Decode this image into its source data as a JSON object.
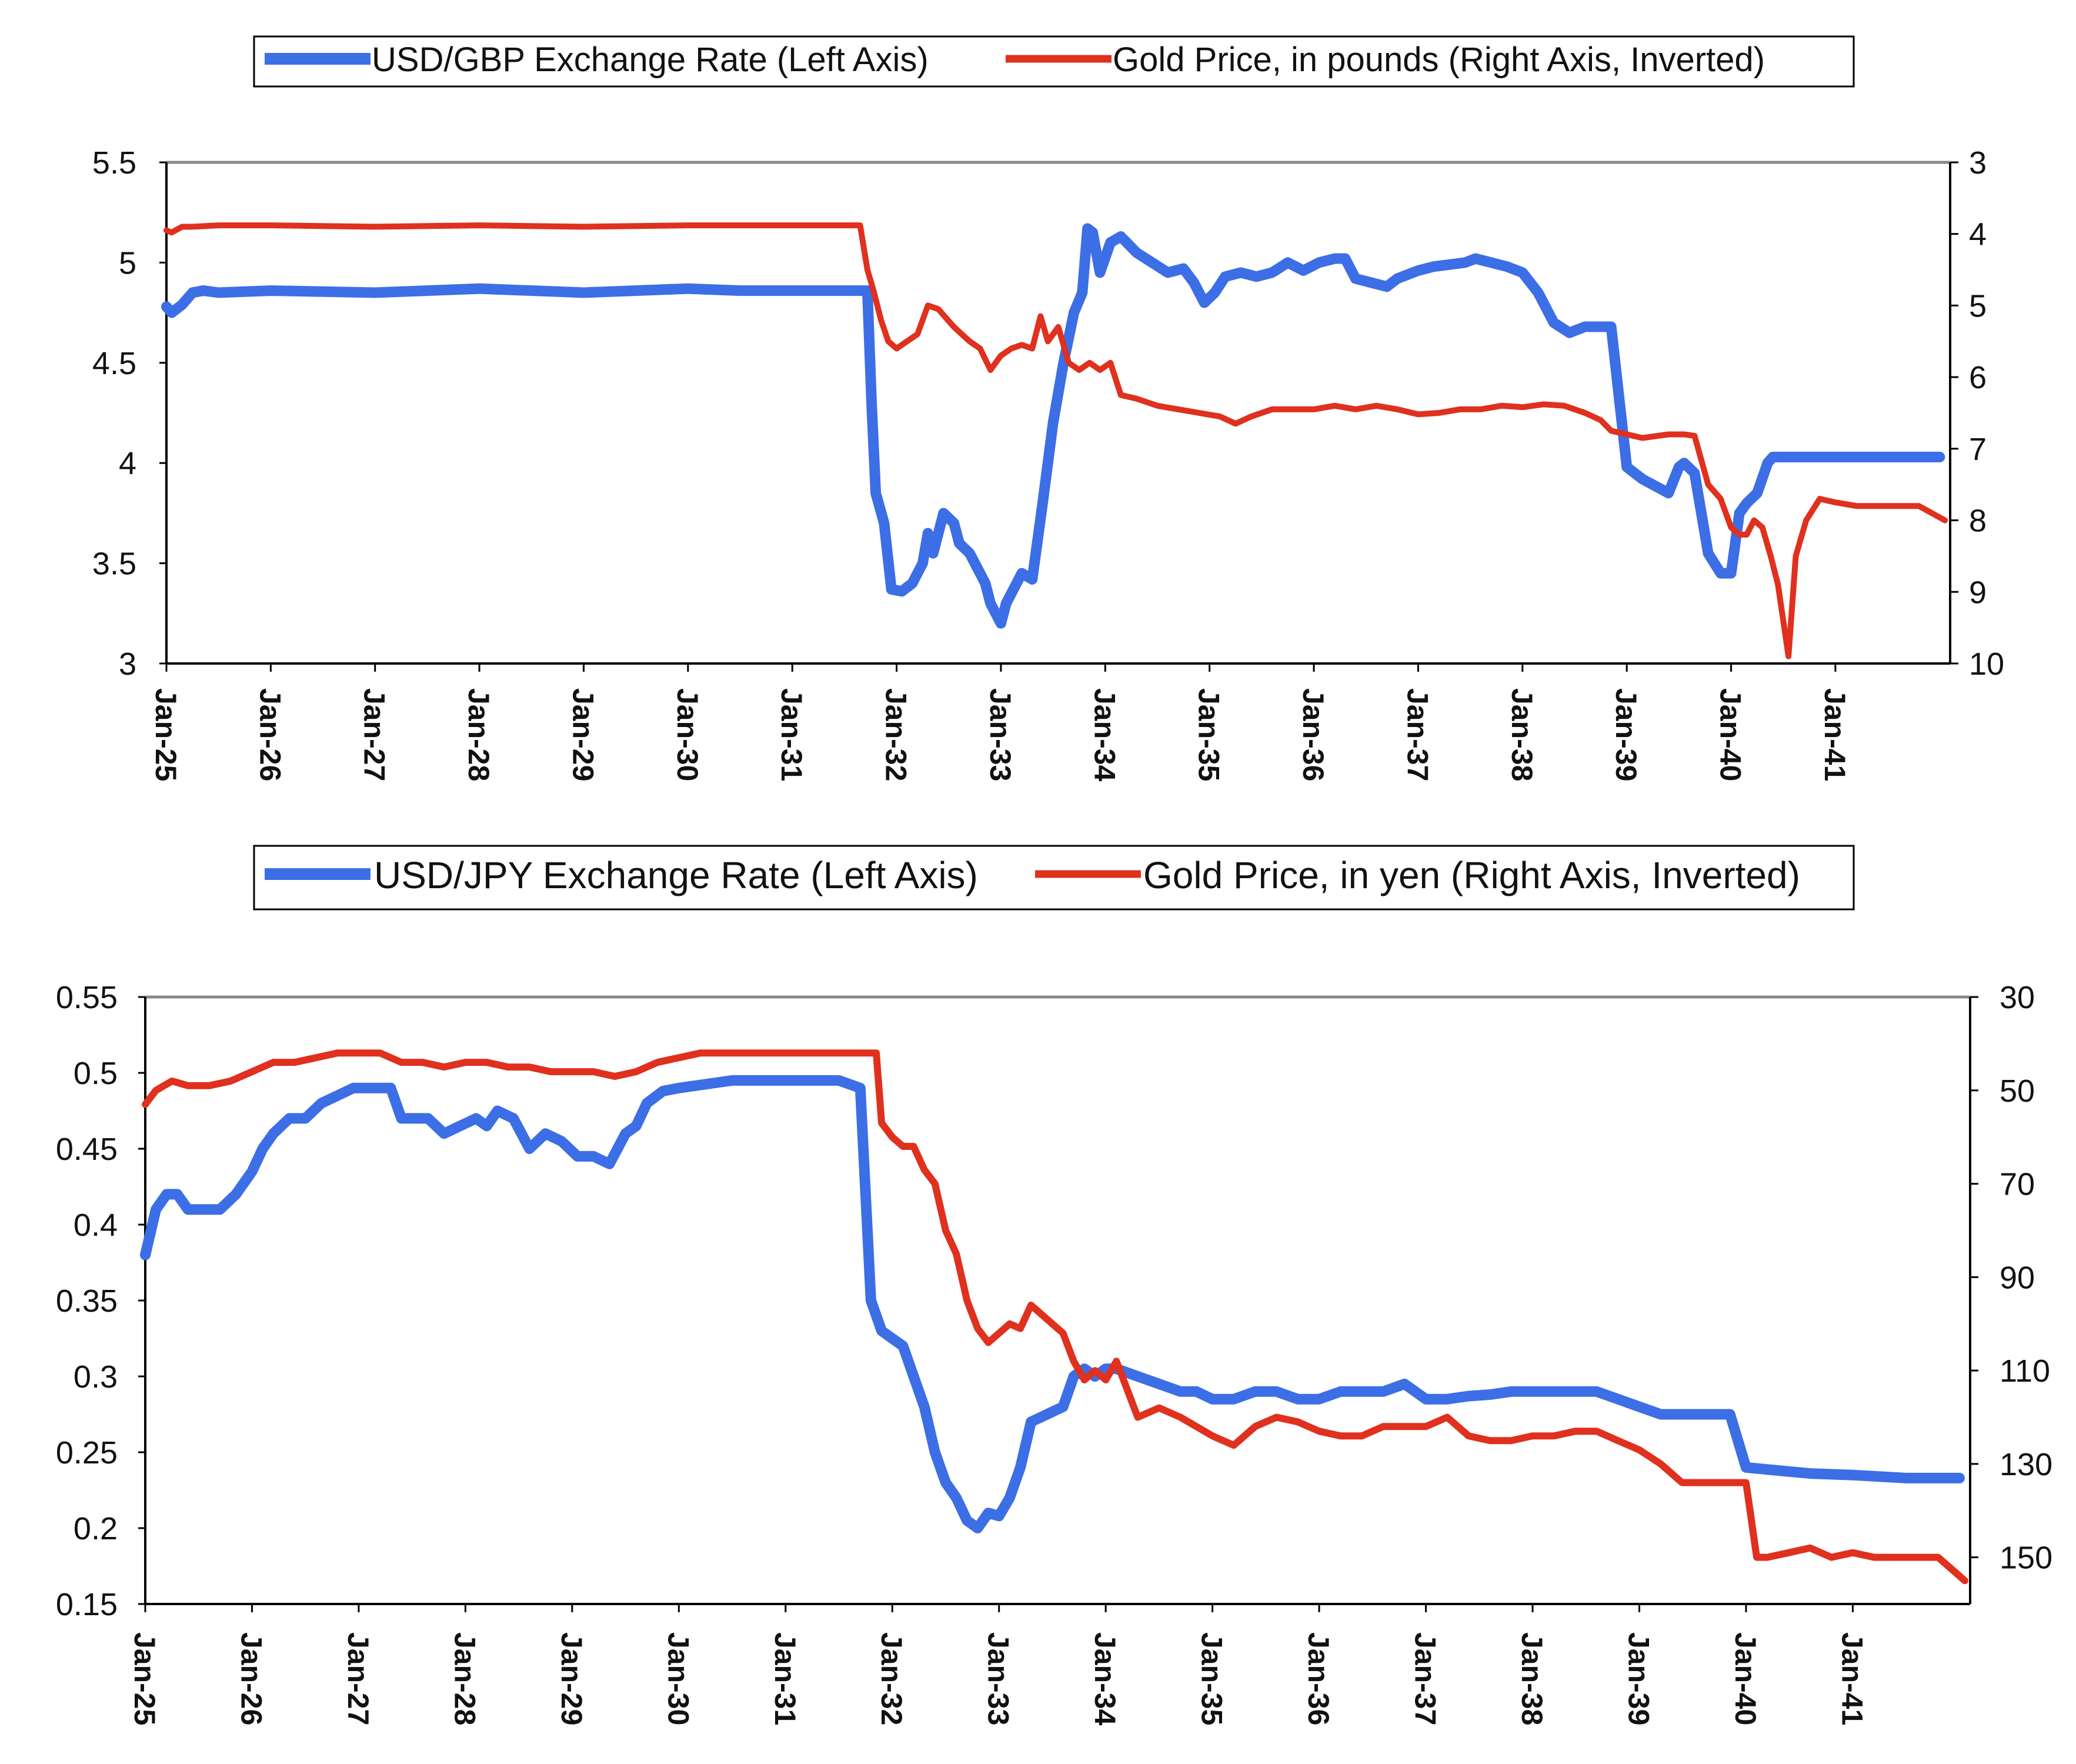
{
  "colors": {
    "usd": "#3c6ee6",
    "gold": "#e0301e"
  },
  "chart_data": [
    {
      "type": "line",
      "legend": {
        "placement": "top",
        "entries": [
          "USD/GBP Exchange Rate (Left Axis)",
          "Gold Price, in pounds (Right Axis, Inverted)"
        ]
      },
      "x_tick_labels": [
        "Jan-25",
        "Jan-26",
        "Jan-27",
        "Jan-28",
        "Jan-29",
        "Jan-30",
        "Jan-31",
        "Jan-32",
        "Jan-33",
        "Jan-34",
        "Jan-35",
        "Jan-36",
        "Jan-37",
        "Jan-38",
        "Jan-39",
        "Jan-40",
        "Jan-41"
      ],
      "x_range": [
        1925,
        1942.1
      ],
      "y_left": {
        "range": [
          3,
          5.5
        ],
        "ticks": [
          "3",
          "3.5",
          "4",
          "4.5",
          "5",
          "5.5"
        ]
      },
      "y_right": {
        "range": [
          3,
          10
        ],
        "inverted": true,
        "ticks": [
          "3",
          "4",
          "5",
          "6",
          "7",
          "8",
          "9",
          "10"
        ]
      },
      "series": [
        {
          "name": "USD/GBP Exchange Rate (Left Axis)",
          "axis": "left",
          "x": [
            1925.0,
            1925.05,
            1925.15,
            1925.25,
            1925.35,
            1925.5,
            1926.0,
            1927.0,
            1928.0,
            1929.0,
            1929.5,
            1930.0,
            1930.5,
            1931.0,
            1931.5,
            1931.72,
            1931.76,
            1931.8,
            1931.88,
            1931.95,
            1932.05,
            1932.15,
            1932.25,
            1932.3,
            1932.35,
            1932.45,
            1932.55,
            1932.6,
            1932.7,
            1932.8,
            1932.85,
            1932.9,
            1933.0,
            1933.05,
            1933.15,
            1933.2,
            1933.3,
            1933.4,
            1933.5,
            1933.6,
            1933.7,
            1933.78,
            1933.83,
            1933.88,
            1933.95,
            1934.05,
            1934.15,
            1934.3,
            1934.45,
            1934.6,
            1934.75,
            1934.85,
            1934.95,
            1935.05,
            1935.15,
            1935.3,
            1935.45,
            1935.6,
            1935.75,
            1935.9,
            1936.05,
            1936.2,
            1936.3,
            1936.4,
            1936.55,
            1936.7,
            1936.8,
            1936.9,
            1937.0,
            1937.15,
            1937.3,
            1937.45,
            1937.55,
            1937.7,
            1937.85,
            1938.0,
            1938.15,
            1938.3,
            1938.45,
            1938.6,
            1938.75,
            1938.85,
            1939.0,
            1939.15,
            1939.4,
            1939.5,
            1939.55,
            1939.65,
            1939.78,
            1939.9,
            1940.0,
            1940.08,
            1940.15,
            1940.25,
            1940.35,
            1940.4,
            1940.45,
            1940.55,
            1940.62,
            1940.72,
            1941.0,
            1941.5,
            1942.0
          ],
          "values": [
            4.78,
            4.75,
            4.79,
            4.85,
            4.86,
            4.85,
            4.86,
            4.85,
            4.87,
            4.85,
            4.86,
            4.87,
            4.86,
            4.86,
            4.86,
            4.86,
            4.3,
            3.85,
            3.7,
            3.37,
            3.36,
            3.4,
            3.5,
            3.65,
            3.55,
            3.75,
            3.7,
            3.6,
            3.55,
            3.45,
            3.4,
            3.3,
            3.2,
            3.3,
            3.4,
            3.45,
            3.42,
            3.8,
            4.2,
            4.5,
            4.75,
            4.85,
            5.17,
            5.15,
            4.95,
            5.1,
            5.13,
            5.05,
            5.0,
            4.95,
            4.97,
            4.9,
            4.8,
            4.85,
            4.93,
            4.95,
            4.93,
            4.95,
            5.0,
            4.96,
            5.0,
            5.02,
            5.02,
            4.92,
            4.9,
            4.88,
            4.92,
            4.94,
            4.96,
            4.98,
            4.99,
            5.0,
            5.02,
            5.0,
            4.98,
            4.95,
            4.85,
            4.7,
            4.65,
            4.68,
            4.68,
            4.68,
            3.98,
            3.92,
            3.85,
            3.98,
            4.0,
            3.95,
            3.55,
            3.45,
            3.45,
            3.75,
            3.8,
            3.85,
            4.0,
            4.03,
            4.03,
            4.03,
            4.03,
            4.03,
            4.03,
            4.03,
            4.03
          ]
        },
        {
          "name": "Gold Price, in pounds (Right Axis, Inverted)",
          "axis": "right",
          "x": [
            1925.0,
            1925.05,
            1925.15,
            1925.25,
            1925.5,
            1926.0,
            1927.0,
            1928.0,
            1929.0,
            1930.0,
            1931.0,
            1931.5,
            1931.65,
            1931.72,
            1931.78,
            1931.85,
            1931.92,
            1932.0,
            1932.1,
            1932.2,
            1932.3,
            1932.4,
            1932.55,
            1932.7,
            1932.8,
            1932.9,
            1933.0,
            1933.1,
            1933.2,
            1933.3,
            1933.38,
            1933.45,
            1933.55,
            1933.65,
            1933.75,
            1933.85,
            1933.95,
            1934.05,
            1934.15,
            1934.3,
            1934.5,
            1934.7,
            1934.9,
            1935.1,
            1935.25,
            1935.4,
            1935.6,
            1935.8,
            1936.0,
            1936.2,
            1936.4,
            1936.6,
            1936.8,
            1937.0,
            1937.2,
            1937.4,
            1937.6,
            1937.8,
            1938.0,
            1938.2,
            1938.4,
            1938.6,
            1938.75,
            1938.85,
            1939.0,
            1939.15,
            1939.4,
            1939.5,
            1939.55,
            1939.65,
            1939.78,
            1939.9,
            1940.0,
            1940.08,
            1940.15,
            1940.22,
            1940.3,
            1940.38,
            1940.45,
            1940.55,
            1940.62,
            1940.72,
            1940.85,
            1941.0,
            1941.2,
            1941.5,
            1941.8,
            1942.05
          ],
          "values": [
            3.95,
            3.98,
            3.9,
            3.9,
            3.88,
            3.88,
            3.9,
            3.88,
            3.9,
            3.88,
            3.88,
            3.88,
            3.88,
            4.5,
            4.8,
            5.2,
            5.5,
            5.6,
            5.5,
            5.4,
            5.0,
            5.05,
            5.3,
            5.5,
            5.6,
            5.9,
            5.7,
            5.6,
            5.55,
            5.6,
            5.15,
            5.5,
            5.3,
            5.8,
            5.9,
            5.8,
            5.9,
            5.8,
            6.25,
            6.3,
            6.4,
            6.45,
            6.5,
            6.55,
            6.65,
            6.55,
            6.45,
            6.45,
            6.45,
            6.4,
            6.45,
            6.4,
            6.45,
            6.52,
            6.5,
            6.45,
            6.45,
            6.4,
            6.42,
            6.38,
            6.4,
            6.5,
            6.6,
            6.75,
            6.8,
            6.85,
            6.8,
            6.8,
            6.8,
            6.82,
            7.5,
            7.7,
            8.1,
            8.2,
            8.2,
            8.0,
            8.1,
            8.5,
            8.9,
            9.9,
            8.5,
            8.0,
            7.7,
            7.75,
            7.8,
            7.8,
            7.8,
            8.0
          ]
        }
      ]
    },
    {
      "type": "line",
      "legend": {
        "placement": "top",
        "entries": [
          "USD/JPY Exchange Rate (Left Axis)",
          "Gold Price, in yen (Right Axis, Inverted)"
        ]
      },
      "x_tick_labels": [
        "Jan-25",
        "Jan-26",
        "Jan-27",
        "Jan-28",
        "Jan-29",
        "Jan-30",
        "Jan-31",
        "Jan-32",
        "Jan-33",
        "Jan-34",
        "Jan-35",
        "Jan-36",
        "Jan-37",
        "Jan-38",
        "Jan-39",
        "Jan-40",
        "Jan-41"
      ],
      "x_range": [
        1925,
        1942.1
      ],
      "y_left": {
        "range": [
          0.15,
          0.55
        ],
        "ticks": [
          "0.15",
          "0.2",
          "0.25",
          "0.3",
          "0.35",
          "0.4",
          "0.45",
          "0.5",
          "0.55"
        ]
      },
      "y_right": {
        "range": [
          30,
          160
        ],
        "inverted": true,
        "ticks": [
          "30",
          "50",
          "70",
          "90",
          "110",
          "130",
          "150"
        ]
      },
      "series": [
        {
          "name": "USD/JPY Exchange Rate (Left Axis)",
          "axis": "left",
          "x": [
            1925.0,
            1925.1,
            1925.2,
            1925.3,
            1925.4,
            1925.5,
            1925.7,
            1925.85,
            1926.0,
            1926.1,
            1926.2,
            1926.35,
            1926.5,
            1926.65,
            1926.8,
            1926.95,
            1927.1,
            1927.2,
            1927.3,
            1927.4,
            1927.5,
            1927.65,
            1927.8,
            1927.95,
            1928.1,
            1928.2,
            1928.3,
            1928.45,
            1928.6,
            1928.75,
            1928.9,
            1929.05,
            1929.2,
            1929.35,
            1929.5,
            1929.6,
            1929.7,
            1929.85,
            1930.0,
            1930.2,
            1930.5,
            1931.0,
            1931.5,
            1931.7,
            1931.8,
            1931.85,
            1931.9,
            1932.0,
            1932.1,
            1932.2,
            1932.3,
            1932.4,
            1932.5,
            1932.6,
            1932.7,
            1932.8,
            1932.9,
            1933.0,
            1933.1,
            1933.2,
            1933.3,
            1933.45,
            1933.6,
            1933.7,
            1933.8,
            1933.9,
            1934.0,
            1934.1,
            1934.3,
            1934.5,
            1934.7,
            1934.85,
            1935.0,
            1935.2,
            1935.4,
            1935.6,
            1935.8,
            1936.0,
            1936.2,
            1936.4,
            1936.6,
            1936.8,
            1937.0,
            1937.2,
            1937.4,
            1937.6,
            1937.8,
            1938.0,
            1938.2,
            1938.4,
            1938.6,
            1938.8,
            1939.0,
            1939.2,
            1939.4,
            1939.5,
            1939.6,
            1939.7,
            1939.85,
            1940.0,
            1940.3,
            1940.6,
            1941.0,
            1941.5,
            1942.0
          ],
          "values": [
            0.38,
            0.41,
            0.42,
            0.42,
            0.41,
            0.41,
            0.41,
            0.42,
            0.435,
            0.45,
            0.46,
            0.47,
            0.47,
            0.48,
            0.485,
            0.49,
            0.49,
            0.49,
            0.49,
            0.47,
            0.47,
            0.47,
            0.46,
            0.465,
            0.47,
            0.465,
            0.475,
            0.47,
            0.45,
            0.46,
            0.455,
            0.445,
            0.445,
            0.44,
            0.46,
            0.465,
            0.48,
            0.488,
            0.49,
            0.492,
            0.495,
            0.495,
            0.495,
            0.49,
            0.35,
            0.34,
            0.33,
            0.325,
            0.32,
            0.3,
            0.28,
            0.25,
            0.23,
            0.22,
            0.205,
            0.2,
            0.21,
            0.208,
            0.22,
            0.24,
            0.27,
            0.275,
            0.28,
            0.3,
            0.305,
            0.3,
            0.305,
            0.305,
            0.3,
            0.295,
            0.29,
            0.29,
            0.285,
            0.285,
            0.29,
            0.29,
            0.285,
            0.285,
            0.29,
            0.29,
            0.29,
            0.295,
            0.285,
            0.285,
            0.287,
            0.288,
            0.29,
            0.29,
            0.29,
            0.29,
            0.29,
            0.285,
            0.28,
            0.275,
            0.275,
            0.275,
            0.275,
            0.275,
            0.275,
            0.24,
            0.238,
            0.236,
            0.235,
            0.233,
            0.233
          ]
        },
        {
          "name": "Gold Price, in yen (Right Axis, Inverted)",
          "axis": "right",
          "x": [
            1925.0,
            1925.1,
            1925.25,
            1925.4,
            1925.6,
            1925.8,
            1926.0,
            1926.2,
            1926.4,
            1926.6,
            1926.8,
            1927.0,
            1927.2,
            1927.4,
            1927.6,
            1927.8,
            1928.0,
            1928.2,
            1928.4,
            1928.6,
            1928.8,
            1929.0,
            1929.2,
            1929.4,
            1929.6,
            1929.8,
            1930.0,
            1930.2,
            1930.5,
            1931.0,
            1931.5,
            1931.85,
            1931.9,
            1932.0,
            1932.1,
            1932.2,
            1932.3,
            1932.4,
            1932.5,
            1932.6,
            1932.7,
            1932.8,
            1932.9,
            1933.0,
            1933.1,
            1933.2,
            1933.3,
            1933.4,
            1933.5,
            1933.6,
            1933.7,
            1933.8,
            1933.9,
            1934.0,
            1934.1,
            1934.3,
            1934.5,
            1934.7,
            1934.85,
            1935.0,
            1935.2,
            1935.4,
            1935.6,
            1935.8,
            1936.0,
            1936.2,
            1936.4,
            1936.6,
            1936.8,
            1937.0,
            1937.2,
            1937.4,
            1937.6,
            1937.8,
            1938.0,
            1938.2,
            1938.4,
            1938.6,
            1938.8,
            1939.0,
            1939.2,
            1939.4,
            1939.6,
            1939.8,
            1940.0,
            1940.1,
            1940.2,
            1940.4,
            1940.6,
            1940.8,
            1941.0,
            1941.2,
            1941.5,
            1941.8,
            1942.05
          ],
          "values": [
            53,
            50,
            48,
            49,
            49,
            48,
            46,
            44,
            44,
            43,
            42,
            42,
            42,
            44,
            44,
            45,
            44,
            44,
            45,
            45,
            46,
            46,
            46,
            47,
            46,
            44,
            43,
            42,
            42,
            42,
            42,
            42,
            57,
            60,
            62,
            62,
            67,
            70,
            80,
            85,
            95,
            101,
            104,
            102,
            100,
            101,
            96,
            98,
            100,
            102,
            108,
            112,
            110,
            112,
            108,
            120,
            118,
            120,
            122,
            124,
            126,
            122,
            120,
            121,
            123,
            124,
            124,
            122,
            122,
            122,
            120,
            124,
            125,
            125,
            124,
            124,
            123,
            123,
            125,
            127,
            130,
            134,
            134,
            134,
            134,
            150,
            150,
            149,
            148,
            150,
            149,
            150,
            150,
            150,
            155
          ]
        }
      ]
    }
  ]
}
